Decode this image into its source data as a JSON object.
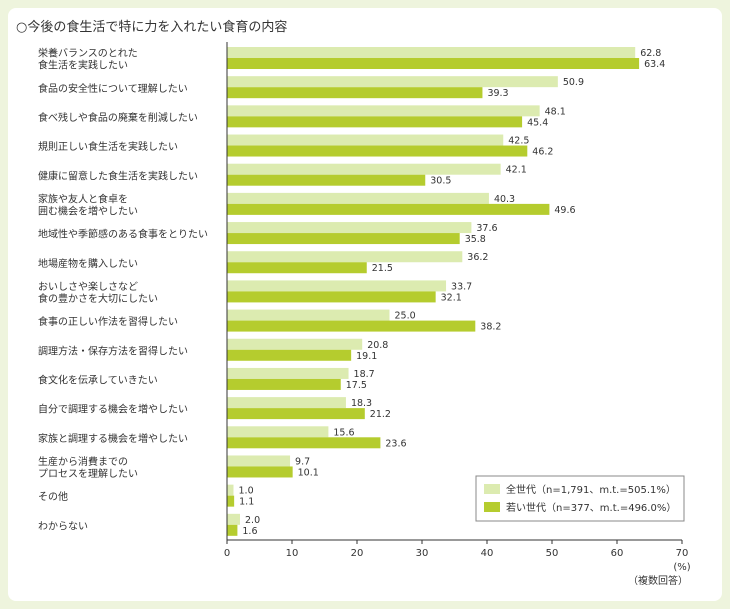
{
  "chart_data": {
    "type": "bar",
    "orientation": "horizontal",
    "title": "○今後の食生活で特に力を入れたい食育の内容",
    "categories": [
      [
        "栄養バランスのとれた",
        "食生活を実践したい"
      ],
      [
        "食品の安全性について理解したい"
      ],
      [
        "食べ残しや食品の廃棄を削減したい"
      ],
      [
        "規則正しい食生活を実践したい"
      ],
      [
        "健康に留意した食生活を実践したい"
      ],
      [
        "家族や友人と食卓を",
        "囲む機会を増やしたい"
      ],
      [
        "地域性や季節感のある食事をとりたい"
      ],
      [
        "地場産物を購入したい"
      ],
      [
        "おいしさや楽しさなど",
        "食の豊かさを大切にしたい"
      ],
      [
        "食事の正しい作法を習得したい"
      ],
      [
        "調理方法・保存方法を習得したい"
      ],
      [
        "食文化を伝承していきたい"
      ],
      [
        "自分で調理する機会を増やしたい"
      ],
      [
        "家族と調理する機会を増やしたい"
      ],
      [
        "生産から消費までの",
        "プロセスを理解したい"
      ],
      [
        "その他"
      ],
      [
        "わからない"
      ]
    ],
    "series": [
      {
        "name": "全世代",
        "legend": "全世代（n=1,791、m.t.=505.1%）",
        "color": "#dcebb0",
        "values": [
          62.8,
          50.9,
          48.1,
          42.5,
          42.1,
          40.3,
          37.6,
          36.2,
          33.7,
          25.0,
          20.8,
          18.7,
          18.3,
          15.6,
          9.7,
          1.0,
          2.0
        ],
        "labels": [
          "62.8",
          "50.9",
          "48.1",
          "42.5",
          "42.1",
          "40.3",
          "37.6",
          "36.2",
          "33.7",
          "25.0",
          "20.8",
          "18.7",
          "18.3",
          "15.6",
          "9.7",
          "1.0",
          "2.0"
        ]
      },
      {
        "name": "若い世代",
        "legend": "若い世代（n=377、m.t.=496.0%）",
        "color": "#b5cc2e",
        "values": [
          63.4,
          39.3,
          45.4,
          46.2,
          30.5,
          49.6,
          35.8,
          21.5,
          32.1,
          38.2,
          19.1,
          17.5,
          21.2,
          23.6,
          10.1,
          1.1,
          1.6
        ],
        "labels": [
          "63.4",
          "39.3",
          "45.4",
          "46.2",
          "30.5",
          "49.6",
          "35.8",
          "21.5",
          "32.1",
          "38.2",
          "19.1",
          "17.5",
          "21.2",
          "23.6",
          "10.1",
          "1.1",
          "1.6"
        ]
      }
    ],
    "xlim": [
      0,
      70
    ],
    "xticks": [
      "0",
      "10",
      "20",
      "30",
      "40",
      "50",
      "60",
      "70"
    ],
    "xticks_values": [
      0,
      10,
      20,
      30,
      40,
      50,
      60,
      70
    ],
    "unit_label": "(%)",
    "note": "（複数回答）",
    "legend_position": "bottom-right",
    "grid": false
  }
}
